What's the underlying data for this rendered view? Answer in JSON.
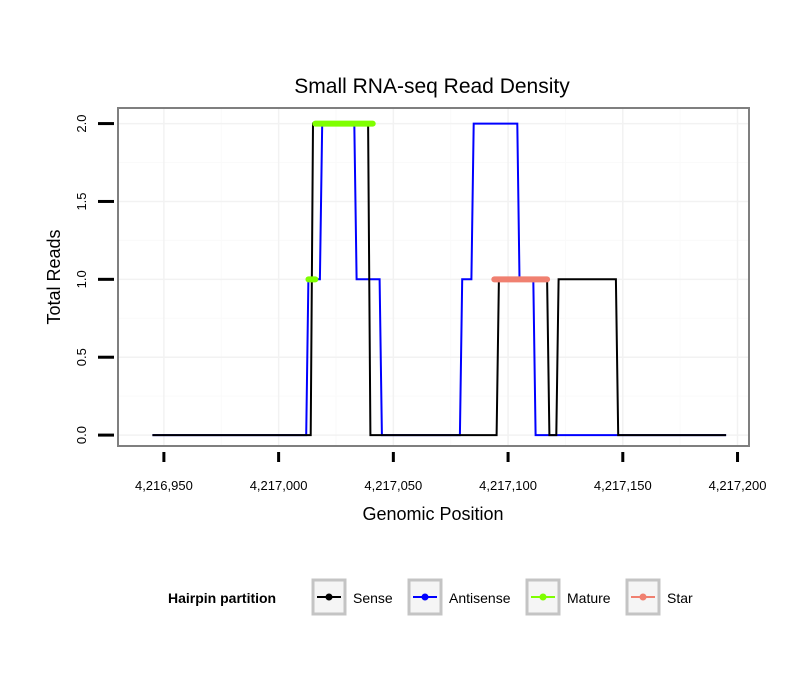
{
  "chart_data": {
    "type": "line",
    "title": "Small RNA-seq Read Density",
    "xlabel": "Genomic Position",
    "ylabel": "Total Reads",
    "xlim": [
      4216930,
      4217205
    ],
    "ylim": [
      -0.07,
      2.1
    ],
    "x_ticks": [
      4216950,
      4217000,
      4217050,
      4217100,
      4217150,
      4217200
    ],
    "x_tick_labels": [
      "4,216,950",
      "4,217,000",
      "4,217,050",
      "4,217,100",
      "4,217,150",
      "4,217,200"
    ],
    "y_ticks": [
      0,
      0.5,
      1,
      1.5,
      2
    ],
    "y_tick_labels": [
      "0.0",
      "0.5",
      "1.0",
      "1.5",
      "2.0"
    ],
    "grid": true,
    "series": [
      {
        "name": "Antisense",
        "color": "#0000ff",
        "points": [
          [
            4216945,
            0
          ],
          [
            4217012,
            0
          ],
          [
            4217013,
            1
          ],
          [
            4217018,
            1
          ],
          [
            4217019,
            2
          ],
          [
            4217033,
            2
          ],
          [
            4217034,
            1
          ],
          [
            4217044,
            1
          ],
          [
            4217045,
            0
          ],
          [
            4217079,
            0
          ],
          [
            4217080,
            1
          ],
          [
            4217084,
            1
          ],
          [
            4217085,
            2
          ],
          [
            4217104,
            2
          ],
          [
            4217105,
            1
          ],
          [
            4217111,
            1
          ],
          [
            4217112,
            0
          ],
          [
            4217195,
            0
          ]
        ]
      },
      {
        "name": "Sense",
        "color": "#000000",
        "points": [
          [
            4216945,
            0
          ],
          [
            4217014,
            0
          ],
          [
            4217015,
            2
          ],
          [
            4217039,
            2
          ],
          [
            4217040,
            0
          ],
          [
            4217095,
            0
          ],
          [
            4217096,
            1
          ],
          [
            4217117,
            1
          ],
          [
            4217118,
            0
          ],
          [
            4217121,
            0
          ],
          [
            4217122,
            1
          ],
          [
            4217147,
            1
          ],
          [
            4217148,
            0
          ],
          [
            4217195,
            0
          ]
        ]
      }
    ],
    "partitions": [
      {
        "name": "Mature",
        "color": "#7fff00",
        "segments": [
          [
            4217013,
            4217016,
            1
          ],
          [
            4217016,
            4217041,
            2
          ]
        ]
      },
      {
        "name": "Star",
        "color": "#f08070",
        "segments": [
          [
            4217094,
            4217117,
            1
          ]
        ]
      }
    ],
    "legend": {
      "title": "Hairpin partition",
      "position": "bottom",
      "entries": [
        {
          "label": "Sense",
          "color": "#000000"
        },
        {
          "label": "Antisense",
          "color": "#0000ff"
        },
        {
          "label": "Mature",
          "color": "#7fff00"
        },
        {
          "label": "Star",
          "color": "#f08070"
        }
      ]
    }
  }
}
